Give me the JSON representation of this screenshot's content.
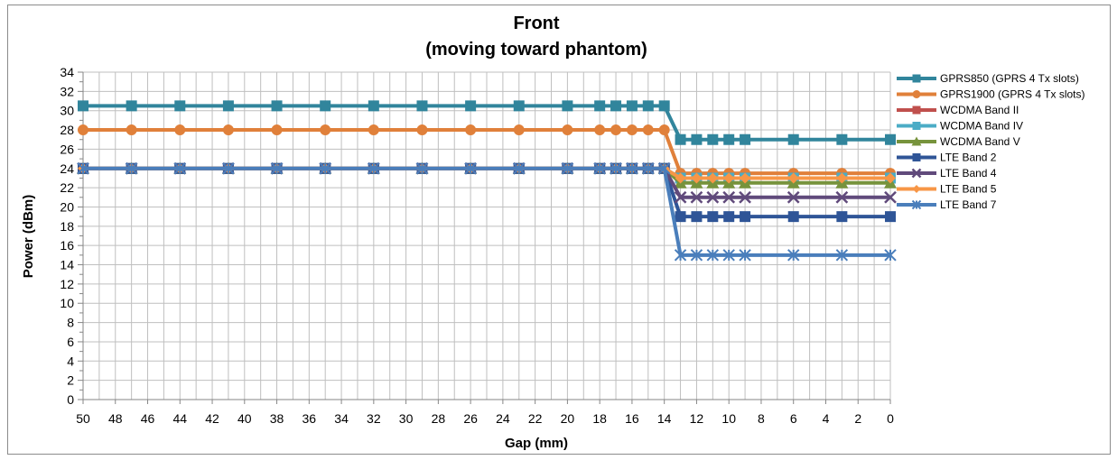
{
  "chart_data": {
    "type": "line",
    "title": "Front",
    "subtitle": "(moving toward phantom)",
    "xlabel": "Gap (mm)",
    "ylabel": "Power (dBm)",
    "x_reversed": true,
    "xlim": [
      0,
      50
    ],
    "ylim": [
      0,
      34
    ],
    "x_ticks": [
      50,
      48,
      46,
      44,
      42,
      40,
      38,
      36,
      34,
      32,
      30,
      28,
      26,
      24,
      22,
      20,
      18,
      16,
      14,
      12,
      10,
      8,
      6,
      4,
      2,
      0
    ],
    "y_ticks": [
      0,
      2,
      4,
      6,
      8,
      10,
      12,
      14,
      16,
      18,
      20,
      22,
      24,
      26,
      28,
      30,
      32,
      34
    ],
    "grid": true,
    "legend_position": "right",
    "x": [
      50,
      47,
      44,
      41,
      38,
      35,
      32,
      29,
      26,
      23,
      20,
      18,
      17,
      16,
      15,
      14,
      13,
      12,
      11,
      10,
      9,
      6,
      3,
      0
    ],
    "series": [
      {
        "name": "GPRS850 (GPRS 4 Tx slots)",
        "color": "#31859c",
        "marker": "square",
        "values": [
          30.5,
          30.5,
          30.5,
          30.5,
          30.5,
          30.5,
          30.5,
          30.5,
          30.5,
          30.5,
          30.5,
          30.5,
          30.5,
          30.5,
          30.5,
          30.5,
          27,
          27,
          27,
          27,
          27,
          27,
          27,
          27
        ]
      },
      {
        "name": "GPRS1900 (GPRS 4 Tx slots)",
        "color": "#e0803a",
        "marker": "circle",
        "values": [
          28,
          28,
          28,
          28,
          28,
          28,
          28,
          28,
          28,
          28,
          28,
          28,
          28,
          28,
          28,
          28,
          23.5,
          23.5,
          23.5,
          23.5,
          23.5,
          23.5,
          23.5,
          23.5
        ]
      },
      {
        "name": "WCDMA Band II",
        "color": "#c0504d",
        "marker": "square",
        "values": [
          24,
          24,
          24,
          24,
          24,
          24,
          24,
          24,
          24,
          24,
          24,
          24,
          24,
          24,
          24,
          24,
          23,
          23,
          23,
          23,
          23,
          23,
          23,
          23
        ]
      },
      {
        "name": "WCDMA Band IV",
        "color": "#4bacc6",
        "marker": "square",
        "values": [
          24,
          24,
          24,
          24,
          24,
          24,
          24,
          24,
          24,
          24,
          24,
          24,
          24,
          24,
          24,
          24,
          23,
          23,
          23,
          23,
          23,
          23,
          23,
          23
        ]
      },
      {
        "name": "WCDMA Band V",
        "color": "#77933c",
        "marker": "triangle",
        "values": [
          24,
          24,
          24,
          24,
          24,
          24,
          24,
          24,
          24,
          24,
          24,
          24,
          24,
          24,
          24,
          24,
          22.5,
          22.5,
          22.5,
          22.5,
          22.5,
          22.5,
          22.5,
          22.5
        ]
      },
      {
        "name": "LTE Band 2",
        "color": "#2f5597",
        "marker": "square",
        "values": [
          24,
          24,
          24,
          24,
          24,
          24,
          24,
          24,
          24,
          24,
          24,
          24,
          24,
          24,
          24,
          24,
          19,
          19,
          19,
          19,
          19,
          19,
          19,
          19
        ]
      },
      {
        "name": "LTE Band 4",
        "color": "#604a7b",
        "marker": "x",
        "values": [
          24,
          24,
          24,
          24,
          24,
          24,
          24,
          24,
          24,
          24,
          24,
          24,
          24,
          24,
          24,
          24,
          21,
          21,
          21,
          21,
          21,
          21,
          21,
          21
        ]
      },
      {
        "name": "LTE Band 5",
        "color": "#f79646",
        "marker": "diamond",
        "values": [
          24,
          24,
          24,
          24,
          24,
          24,
          24,
          24,
          24,
          24,
          24,
          24,
          24,
          24,
          24,
          24,
          23,
          23,
          23,
          23,
          23,
          23,
          23,
          23
        ]
      },
      {
        "name": "LTE Band 7",
        "color": "#4a7ebb",
        "marker": "star",
        "values": [
          24,
          24,
          24,
          24,
          24,
          24,
          24,
          24,
          24,
          24,
          24,
          24,
          24,
          24,
          24,
          24,
          15,
          15,
          15,
          15,
          15,
          15,
          15,
          15
        ]
      }
    ]
  }
}
